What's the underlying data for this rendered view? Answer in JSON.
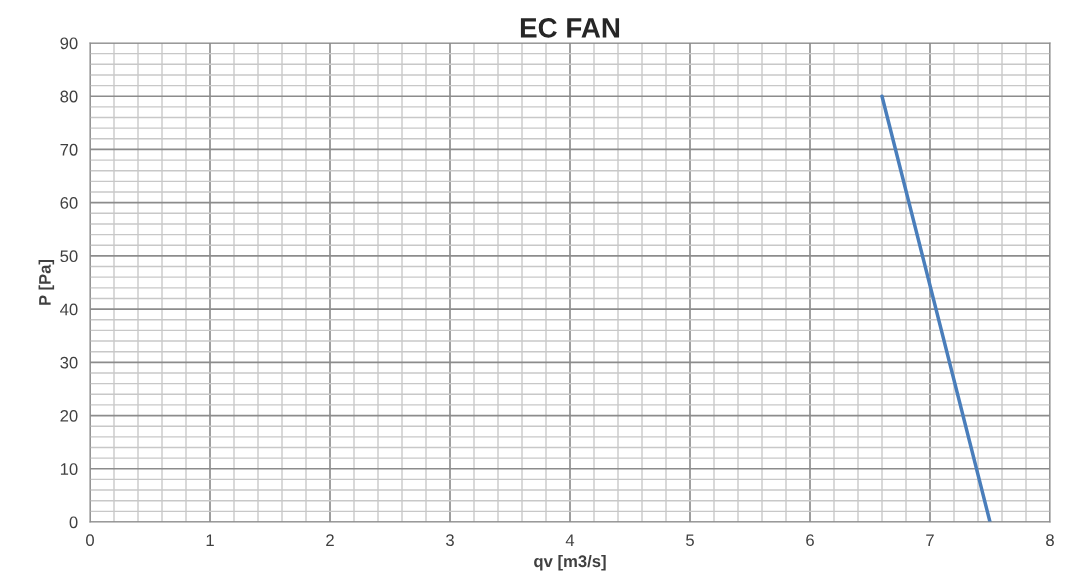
{
  "chart_data": {
    "type": "line",
    "title": "EC FAN",
    "xlabel": "qv [m3/s]",
    "ylabel": "P [Pa]",
    "x": [
      6.6,
      7.5
    ],
    "series": [
      {
        "color": "#4a7ebb",
        "values": [
          80,
          0
        ]
      }
    ],
    "xlim": [
      0,
      8
    ],
    "xticks": [
      0,
      1,
      2,
      3,
      4,
      5,
      6,
      7,
      8
    ],
    "ylim": [
      0,
      90
    ],
    "yticks": [
      0,
      10,
      20,
      30,
      40,
      50,
      60,
      70,
      80,
      90
    ],
    "grid": true,
    "marker": "none",
    "line_style": "solid",
    "legend": false
  }
}
